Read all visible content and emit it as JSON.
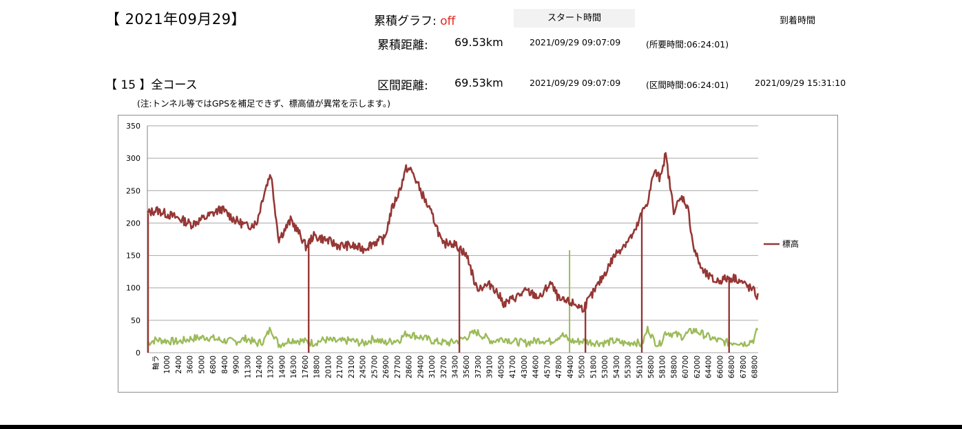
{
  "header": {
    "date_title": "【 2021年09月29】",
    "cumulative_graph_label": "累積グラフ: ",
    "cumulative_graph_value": "off",
    "start_time_button": "スタート時間",
    "arrival_time_label": "到着時間",
    "cumulative_distance_label": "累積距離:",
    "cumulative_distance_value": "69.53km",
    "cumulative_start": "2021/09/29 09:07:09",
    "required_time": "(所要時間:06:24:01)"
  },
  "section": {
    "course_label": "【 15 】全コース",
    "interval_distance_label": "区間距離:",
    "interval_distance_value": "69.53km",
    "interval_start": "2021/09/29 09:07:09",
    "interval_time": "(区間時間:06:24:01)",
    "interval_end": "2021/09/29 15:31:10",
    "note": "(注:トンネル等ではGPSを補足できず、標高値が異常を示します。)"
  },
  "colors": {
    "elevation": "#953735",
    "secondary": "#9bbb59",
    "accent_red": "#e8211c",
    "grid": "#a6a6a6"
  },
  "chart_data": {
    "type": "line",
    "ylim": [
      0,
      350
    ],
    "yticks": [
      0,
      50,
      100,
      150,
      200,
      250,
      300,
      350
    ],
    "first_x_label": "軸ラ",
    "x_tick_labels": [
      "1000",
      "2400",
      "3600",
      "5000",
      "6800",
      "8400",
      "9900",
      "11300",
      "12400",
      "13200",
      "14900",
      "16300",
      "17600",
      "18800",
      "20100",
      "21700",
      "23100",
      "24500",
      "25700",
      "26900",
      "27700",
      "28600",
      "29400",
      "31000",
      "32700",
      "34300",
      "35600",
      "37300",
      "39100",
      "40500",
      "41700",
      "43000",
      "44600",
      "45700",
      "47800",
      "49400",
      "50500",
      "51800",
      "53000",
      "54300",
      "55300",
      "56100",
      "56800",
      "58100",
      "58800",
      "60700",
      "62000",
      "64400",
      "66000",
      "66800",
      "67800",
      "68800"
    ],
    "grid": true,
    "legend_position": "right",
    "series": [
      {
        "name": "標高",
        "x": [
          0,
          1000,
          2400,
          3600,
          5000,
          6800,
          8400,
          9900,
          11300,
          12400,
          13200,
          14000,
          14900,
          16300,
          17600,
          18000,
          18800,
          20100,
          21700,
          23100,
          24500,
          25700,
          26900,
          27700,
          28600,
          29400,
          30000,
          31000,
          32700,
          33500,
          34300,
          35600,
          36400,
          37300,
          39100,
          40500,
          41700,
          43000,
          44600,
          45700,
          46800,
          47800,
          48500,
          49400,
          50500,
          51800,
          53000,
          54300,
          55300,
          56100,
          56800,
          57500,
          58100,
          58800,
          59700,
          60700,
          61300,
          62000,
          63000,
          64400,
          66000,
          66800,
          67800,
          68800,
          69300
        ],
        "values": [
          215,
          220,
          213,
          207,
          198,
          210,
          222,
          205,
          195,
          200,
          245,
          278,
          175,
          205,
          175,
          163,
          180,
          175,
          165,
          165,
          160,
          170,
          175,
          220,
          250,
          285,
          280,
          250,
          200,
          165,
          172,
          160,
          145,
          100,
          105,
          75,
          85,
          95,
          85,
          108,
          80,
          78,
          75,
          68,
          90,
          120,
          150,
          170,
          185,
          215,
          235,
          280,
          270,
          305,
          220,
          240,
          225,
          160,
          125,
          110,
          115,
          115,
          105,
          95,
          85
        ]
      },
      {
        "name": "",
        "x": [
          0,
          1000,
          2400,
          3600,
          5000,
          6800,
          8400,
          9900,
          11300,
          12400,
          13200,
          14000,
          14900,
          16300,
          17600,
          18800,
          20100,
          21700,
          23100,
          24500,
          25700,
          26900,
          27700,
          28600,
          29400,
          31000,
          32700,
          34300,
          35600,
          37300,
          39100,
          40500,
          41700,
          43000,
          44600,
          45700,
          47000,
          47800,
          48500,
          49400,
          50500,
          51800,
          53000,
          54300,
          55300,
          56100,
          56800,
          57500,
          58100,
          58800,
          60700,
          62000,
          64400,
          66000,
          66800,
          67800,
          68800,
          69300
        ],
        "values": [
          15,
          20,
          18,
          17,
          22,
          24,
          19,
          17,
          22,
          14,
          18,
          38,
          12,
          20,
          18,
          15,
          20,
          17,
          19,
          14,
          22,
          15,
          18,
          20,
          30,
          24,
          17,
          15,
          20,
          32,
          18,
          22,
          17,
          15,
          20,
          17,
          28,
          20,
          17,
          18,
          16,
          15,
          18,
          14,
          17,
          12,
          38,
          18,
          12,
          32,
          25,
          35,
          20,
          15,
          17,
          14,
          20,
          38
        ]
      }
    ],
    "drops_x": [
      18300,
      35400,
      49700,
      56100,
      66000
    ],
    "secondary_spike": {
      "x": 47900,
      "value": 158
    }
  }
}
